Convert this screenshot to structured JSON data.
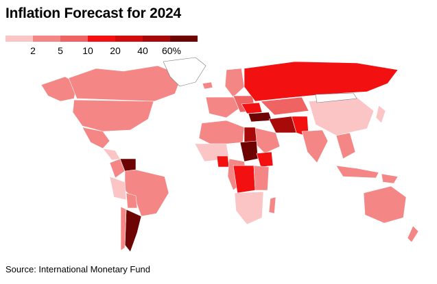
{
  "title": "Inflation Forecast for 2024",
  "legend": {
    "colors": [
      "#fcc5c5",
      "#f48686",
      "#f06363",
      "#f21010",
      "#d10c0c",
      "#a80909",
      "#6e0303"
    ],
    "ticks": [
      "2",
      "5",
      "10",
      "20",
      "40",
      "60%"
    ]
  },
  "source": "Source: International Monetary Fund",
  "colors": {
    "ocean": "#ffffff",
    "border": "#ffffff",
    "no_data": "#ffffff",
    "low": "#fcc5c5",
    "mid": "#f48686",
    "mid_high": "#f06363",
    "high": "#f21010",
    "very_high": "#d10c0c",
    "extreme": "#a80909",
    "max": "#6e0303"
  }
}
